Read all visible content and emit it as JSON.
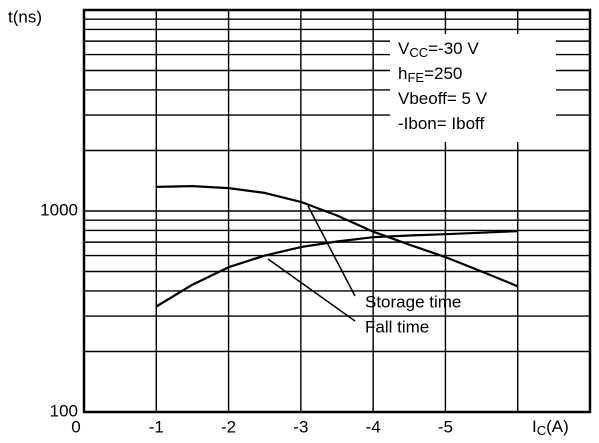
{
  "chart_data": {
    "type": "line",
    "ylabel": "t(ns)",
    "xlabel": [
      {
        "t": "I"
      },
      {
        "t": "C",
        "sub": true
      },
      {
        "t": "(A)"
      }
    ],
    "xlim": [
      0,
      -7
    ],
    "xticks": [
      0,
      -1,
      -2,
      -3,
      -4,
      -5,
      {
        "value": -6,
        "label": null
      }
    ],
    "ylim": [
      100,
      10000
    ],
    "log_y": true,
    "yticks": [
      100,
      1000
    ],
    "yminor": [
      200,
      300,
      400,
      500,
      600,
      700,
      800,
      900,
      2000,
      3000,
      4000,
      5000,
      6000,
      7000,
      8000,
      9000
    ],
    "grid": true,
    "color": "#000000",
    "series": [
      {
        "name": "Storage time",
        "x": [
          -1,
          -1.5,
          -2,
          -2.5,
          -3,
          -3.5,
          -4,
          -4.5,
          -5,
          -5.5,
          -6
        ],
        "values": [
          1318,
          1330,
          1300,
          1230,
          1110,
          950,
          790,
          680,
          590,
          500,
          422
        ]
      },
      {
        "name": "Fall time",
        "x": [
          -1,
          -1.5,
          -2,
          -2.5,
          -3,
          -3.5,
          -4,
          -4.5,
          -5,
          -5.5,
          -6
        ],
        "values": [
          335,
          430,
          525,
          600,
          661,
          705,
          741,
          755,
          767,
          780,
          794
        ]
      }
    ],
    "notes": [
      [
        {
          "t": "V"
        },
        {
          "t": "CC",
          "sub": true
        },
        {
          "t": "=-30 V"
        }
      ],
      [
        {
          "t": "h"
        },
        {
          "t": "FE",
          "sub": true
        },
        {
          "t": "=250"
        }
      ],
      [
        {
          "t": "Vbeoff= 5 V"
        }
      ],
      [
        {
          "t": "-Ibon= Iboff"
        }
      ]
    ]
  }
}
